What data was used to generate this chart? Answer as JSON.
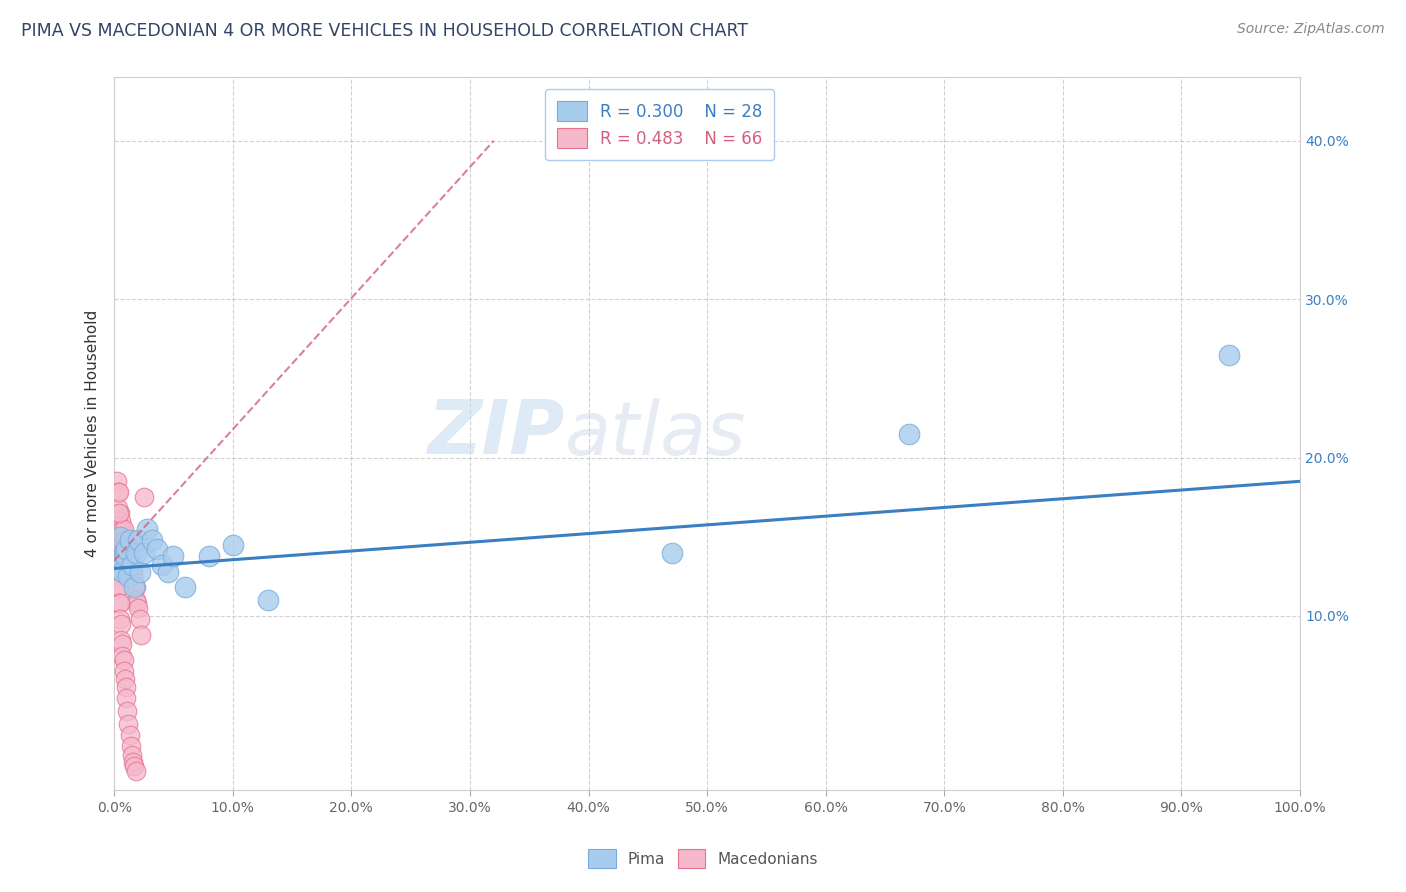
{
  "title": "PIMA VS MACEDONIAN 4 OR MORE VEHICLES IN HOUSEHOLD CORRELATION CHART",
  "source_text": "Source: ZipAtlas.com",
  "ylabel": "4 or more Vehicles in Household",
  "xlim": [
    0.0,
    1.0
  ],
  "ylim": [
    -0.01,
    0.44
  ],
  "xtick_vals": [
    0.0,
    0.1,
    0.2,
    0.3,
    0.4,
    0.5,
    0.6,
    0.7,
    0.8,
    0.9,
    1.0
  ],
  "ytick_vals": [
    0.1,
    0.2,
    0.3,
    0.4
  ],
  "xtick_labels": [
    "0.0%",
    "",
    "",
    "",
    "",
    "50.0%",
    "",
    "",
    "",
    "",
    "100.0%"
  ],
  "ytick_labels": [
    "10.0%",
    "20.0%",
    "30.0%",
    "40.0%"
  ],
  "legend_r1": "R = 0.300",
  "legend_n1": "N = 28",
  "legend_r2": "R = 0.483",
  "legend_n2": "N = 66",
  "watermark_zip": "ZIP",
  "watermark_atlas": "atlas",
  "pima_color": "#A8CCEE",
  "pima_edge_color": "#7AAAD8",
  "macedonian_color": "#F5B8CC",
  "macedonian_edge_color": "#E8708A",
  "trend_pima_color": "#3A7FC1",
  "trend_macedonian_color": "#D46080",
  "pima_points": [
    [
      0.004,
      0.135
    ],
    [
      0.005,
      0.15
    ],
    [
      0.006,
      0.13
    ],
    [
      0.007,
      0.128
    ],
    [
      0.008,
      0.14
    ],
    [
      0.009,
      0.138
    ],
    [
      0.01,
      0.142
    ],
    [
      0.012,
      0.125
    ],
    [
      0.013,
      0.148
    ],
    [
      0.015,
      0.132
    ],
    [
      0.017,
      0.118
    ],
    [
      0.018,
      0.14
    ],
    [
      0.02,
      0.148
    ],
    [
      0.022,
      0.128
    ],
    [
      0.025,
      0.14
    ],
    [
      0.028,
      0.155
    ],
    [
      0.032,
      0.148
    ],
    [
      0.036,
      0.142
    ],
    [
      0.04,
      0.132
    ],
    [
      0.045,
      0.128
    ],
    [
      0.05,
      0.138
    ],
    [
      0.06,
      0.118
    ],
    [
      0.08,
      0.138
    ],
    [
      0.1,
      0.145
    ],
    [
      0.13,
      0.11
    ],
    [
      0.47,
      0.14
    ],
    [
      0.67,
      0.215
    ],
    [
      0.94,
      0.265
    ]
  ],
  "macedonian_points": [
    [
      0.002,
      0.155
    ],
    [
      0.003,
      0.16
    ],
    [
      0.004,
      0.155
    ],
    [
      0.004,
      0.14
    ],
    [
      0.005,
      0.165
    ],
    [
      0.005,
      0.155
    ],
    [
      0.005,
      0.145
    ],
    [
      0.006,
      0.16
    ],
    [
      0.006,
      0.15
    ],
    [
      0.006,
      0.14
    ],
    [
      0.007,
      0.155
    ],
    [
      0.007,
      0.145
    ],
    [
      0.007,
      0.135
    ],
    [
      0.008,
      0.155
    ],
    [
      0.008,
      0.148
    ],
    [
      0.008,
      0.14
    ],
    [
      0.009,
      0.148
    ],
    [
      0.009,
      0.14
    ],
    [
      0.01,
      0.145
    ],
    [
      0.01,
      0.138
    ],
    [
      0.011,
      0.14
    ],
    [
      0.011,
      0.132
    ],
    [
      0.012,
      0.145
    ],
    [
      0.012,
      0.135
    ],
    [
      0.013,
      0.14
    ],
    [
      0.013,
      0.132
    ],
    [
      0.014,
      0.138
    ],
    [
      0.015,
      0.132
    ],
    [
      0.016,
      0.128
    ],
    [
      0.017,
      0.122
    ],
    [
      0.018,
      0.118
    ],
    [
      0.018,
      0.11
    ],
    [
      0.019,
      0.108
    ],
    [
      0.02,
      0.105
    ],
    [
      0.022,
      0.098
    ],
    [
      0.023,
      0.088
    ],
    [
      0.002,
      0.13
    ],
    [
      0.003,
      0.125
    ],
    [
      0.003,
      0.118
    ],
    [
      0.004,
      0.118
    ],
    [
      0.004,
      0.108
    ],
    [
      0.005,
      0.108
    ],
    [
      0.005,
      0.098
    ],
    [
      0.006,
      0.095
    ],
    [
      0.006,
      0.085
    ],
    [
      0.007,
      0.082
    ],
    [
      0.007,
      0.075
    ],
    [
      0.008,
      0.072
    ],
    [
      0.008,
      0.065
    ],
    [
      0.009,
      0.06
    ],
    [
      0.01,
      0.055
    ],
    [
      0.01,
      0.048
    ],
    [
      0.011,
      0.04
    ],
    [
      0.012,
      0.032
    ],
    [
      0.013,
      0.025
    ],
    [
      0.014,
      0.018
    ],
    [
      0.015,
      0.012
    ],
    [
      0.016,
      0.008
    ],
    [
      0.017,
      0.005
    ],
    [
      0.018,
      0.002
    ],
    [
      0.002,
      0.185
    ],
    [
      0.003,
      0.178
    ],
    [
      0.025,
      0.175
    ],
    [
      0.003,
      0.168
    ],
    [
      0.004,
      0.165
    ],
    [
      0.004,
      0.178
    ]
  ],
  "pima_trend_x": [
    0.0,
    1.0
  ],
  "pima_trend_y": [
    0.13,
    0.185
  ],
  "mac_trend_x_start": [
    0.0
  ],
  "mac_trend_x_end": [
    0.32
  ],
  "mac_trend_y_start": [
    0.135
  ],
  "mac_trend_y_end": [
    0.4
  ]
}
